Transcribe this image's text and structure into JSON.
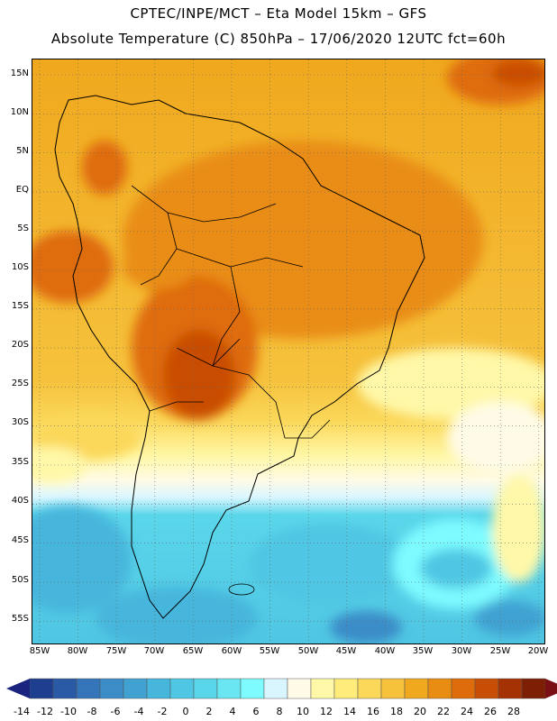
{
  "header": {
    "line1": "CPTEC/INPE/MCT –  Eta Model 15km – GFS",
    "line2": "Absolute Temperature (C) 850hPa – 17/06/2020 12UTC fct=60h"
  },
  "map": {
    "lat_labels": [
      "15N",
      "10N",
      "5N",
      "EQ",
      "5S",
      "10S",
      "15S",
      "20S",
      "25S",
      "30S",
      "35S",
      "40S",
      "45S",
      "50S",
      "55S"
    ],
    "lon_labels": [
      "85W",
      "80W",
      "75W",
      "70W",
      "65W",
      "60W",
      "55W",
      "50W",
      "45W",
      "40W",
      "35W",
      "30W",
      "25W",
      "20W"
    ],
    "gridlines": "dotted"
  },
  "colorbar": {
    "labels": [
      "-14",
      "-12",
      "-10",
      "-8",
      "-6",
      "-4",
      "-2",
      "0",
      "2",
      "4",
      "6",
      "8",
      "10",
      "12",
      "14",
      "16",
      "18",
      "20",
      "22",
      "24",
      "26",
      "28"
    ],
    "colors": [
      "#1e3f8f",
      "#2a5aa5",
      "#3474b8",
      "#3b8cc7",
      "#41a2d2",
      "#47b6dc",
      "#4fc6e3",
      "#5ad6ea",
      "#69e6f2",
      "#7dfbff",
      "#d9f6ff",
      "#fffbe6",
      "#fff8a8",
      "#ffec7a",
      "#fbd85a",
      "#f6c23c",
      "#f0a81e",
      "#e98d12",
      "#df6c0a",
      "#c94e05",
      "#a53202",
      "#7d1f04"
    ],
    "under_color": "#1a237e",
    "over_color": "#7a0f14"
  }
}
